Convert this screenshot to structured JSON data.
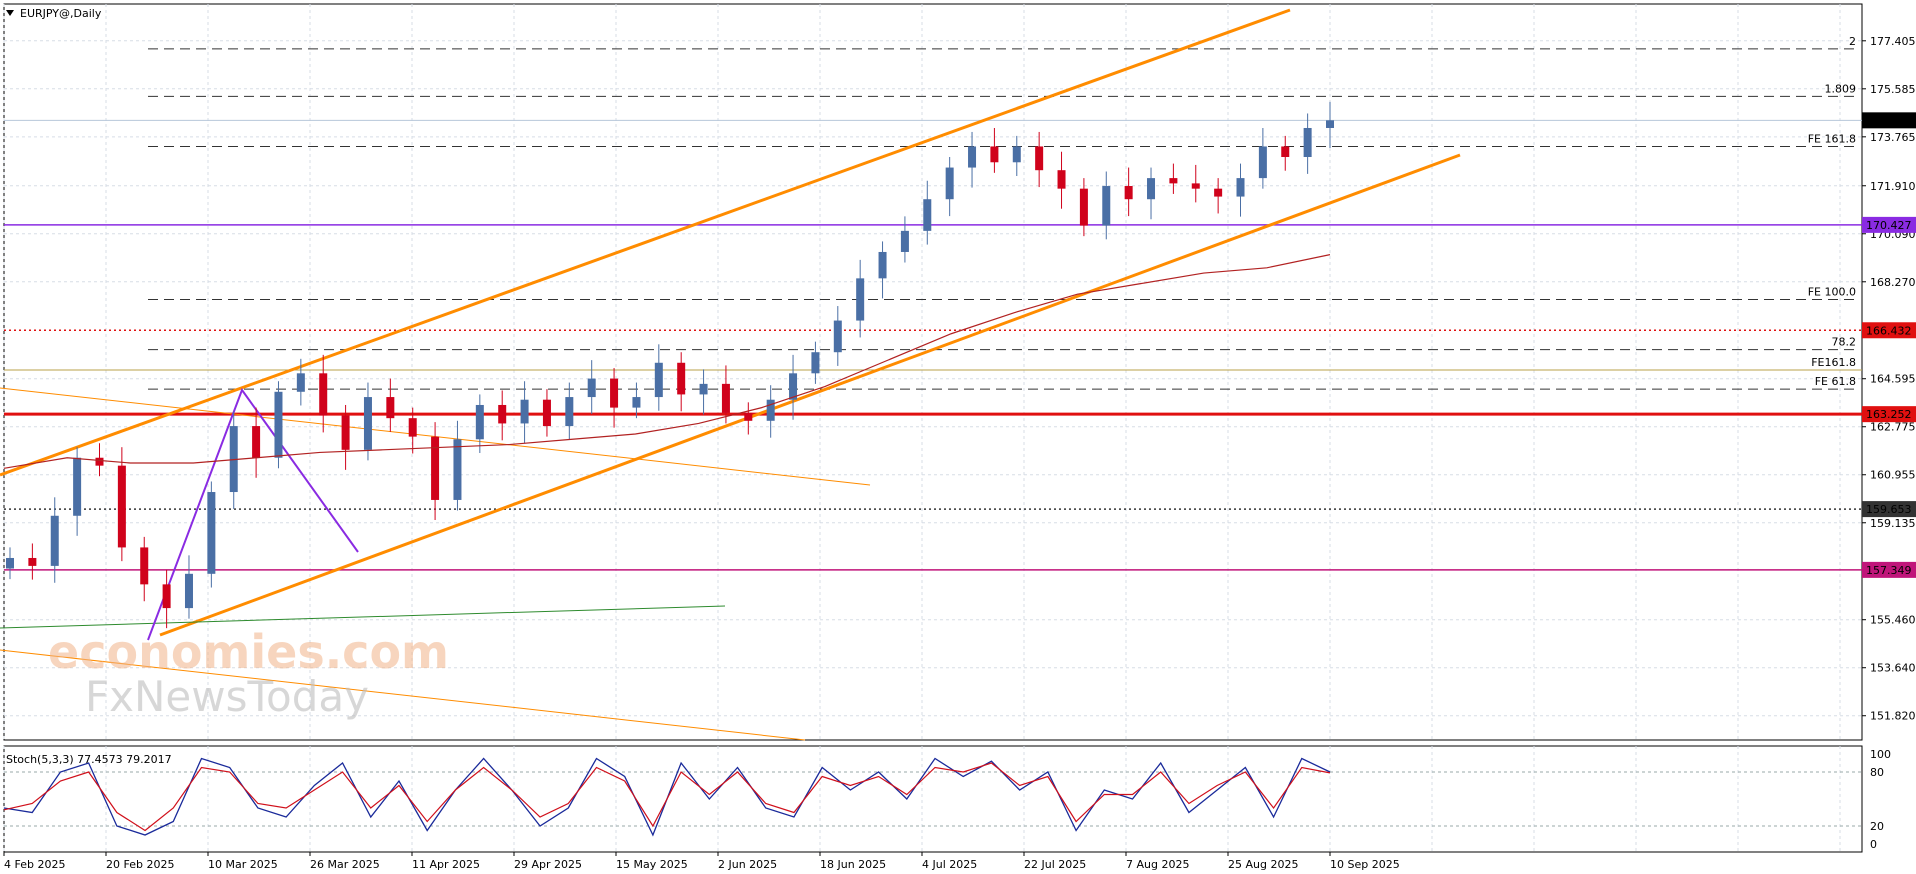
{
  "header": {
    "symbol_label": "EURJPY@,Daily"
  },
  "stoch_header": {
    "label": "Stoch(5,3,3) 77.4573 79.2017"
  },
  "watermark": {
    "line1": "economies.com",
    "line2": "FxNewsToday"
  },
  "colors": {
    "bull": "#4a6fa5",
    "bear": "#d0021b",
    "channel": "#ff8c00",
    "ma": "#b22222",
    "purple": "#8a2be2",
    "grid": "#d7dde6",
    "red_line": "#e01010",
    "magenta_line": "#c0157a",
    "green_line": "#2e8b2e"
  },
  "chart_data": {
    "type": "candlestick",
    "ylim": [
      150.9,
      178.8
    ],
    "price_ticks": [
      "177.405",
      "175.585",
      "173.765",
      "171.910",
      "170.090",
      "168.270",
      "164.595",
      "162.775",
      "160.955",
      "159.135",
      "155.460",
      "153.640",
      "151.820"
    ],
    "date_labels": [
      "4 Feb 2025",
      "20 Feb 2025",
      "10 Mar 2025",
      "26 Mar 2025",
      "11 Apr 2025",
      "29 Apr 2025",
      "15 May 2025",
      "2 Jun 2025",
      "18 Jun 2025",
      "4 Jul 2025",
      "22 Jul 2025",
      "7 Aug 2025",
      "25 Aug 2025",
      "10 Sep 2025"
    ],
    "level_labels": [
      {
        "text": "174.390",
        "y": 174.39,
        "color": "#000000",
        "style": "current"
      },
      {
        "text": "170.427",
        "y": 170.427,
        "color": "#8a2be2",
        "style": "solid"
      },
      {
        "text": "166.432",
        "y": 166.432,
        "color": "#e01010",
        "style": "dotted"
      },
      {
        "text": "163.252",
        "y": 163.252,
        "color": "#e01010",
        "style": "thick"
      },
      {
        "text": "159.653",
        "y": 159.653,
        "color": "#333333",
        "style": "dotted"
      },
      {
        "text": "157.349",
        "y": 157.349,
        "color": "#c0157a",
        "style": "solid"
      }
    ],
    "fib_labels": [
      {
        "text": "2",
        "y": 177.1
      },
      {
        "text": "1.809",
        "y": 175.3
      },
      {
        "text": "FE 161.8",
        "y": 173.4
      },
      {
        "text": "FE 100.0",
        "y": 167.6
      },
      {
        "text": "78.2",
        "y": 165.7
      },
      {
        "text": "FE 61.8",
        "y": 164.2
      }
    ],
    "fib_label_overlap": {
      "text": "FE161.8",
      "y": 165.0
    },
    "close_path": [
      157.8,
      157.5,
      159.4,
      161.6,
      161.3,
      158.2,
      156.8,
      155.9,
      157.2,
      160.3,
      162.8,
      161.6,
      164.1,
      164.8,
      163.2,
      161.9,
      163.9,
      163.1,
      162.4,
      160.0,
      162.3,
      163.6,
      162.9,
      163.8,
      162.8,
      163.9,
      164.6,
      163.5,
      163.9,
      165.2,
      164.0,
      164.4,
      163.3,
      163.0,
      163.8,
      164.8,
      165.6,
      166.8,
      168.4,
      169.4,
      170.2,
      171.4,
      172.6,
      173.4,
      172.8,
      173.4,
      172.5,
      171.8,
      170.4,
      171.9,
      171.4,
      172.2,
      172.0,
      171.8,
      171.5,
      172.2,
      173.4,
      173.0,
      174.1,
      174.39
    ],
    "ma_path": [
      161.2,
      161.6,
      161.4,
      161.4,
      161.6,
      161.8,
      161.9,
      162.0,
      162.1,
      162.3,
      162.5,
      162.9,
      163.5,
      164.3,
      165.3,
      166.3,
      167.1,
      167.8,
      168.2,
      168.6,
      168.8,
      169.3
    ],
    "stoch_k": [
      40,
      35,
      80,
      90,
      20,
      10,
      25,
      95,
      85,
      40,
      30,
      65,
      90,
      30,
      70,
      15,
      60,
      95,
      60,
      20,
      40,
      95,
      75,
      10,
      90,
      50,
      85,
      40,
      30,
      85,
      60,
      80,
      50,
      95,
      75,
      92,
      60,
      80,
      15,
      60,
      50,
      90,
      35,
      60,
      85,
      30,
      95,
      80
    ],
    "stoch_d": [
      38,
      45,
      70,
      80,
      35,
      15,
      40,
      85,
      80,
      45,
      40,
      60,
      80,
      40,
      65,
      25,
      60,
      85,
      60,
      30,
      45,
      85,
      70,
      20,
      80,
      55,
      80,
      45,
      35,
      75,
      65,
      75,
      55,
      85,
      80,
      90,
      65,
      75,
      25,
      55,
      55,
      80,
      45,
      65,
      80,
      40,
      85,
      79
    ],
    "stoch_levels": [
      "100",
      "80",
      "20",
      "0"
    ]
  }
}
